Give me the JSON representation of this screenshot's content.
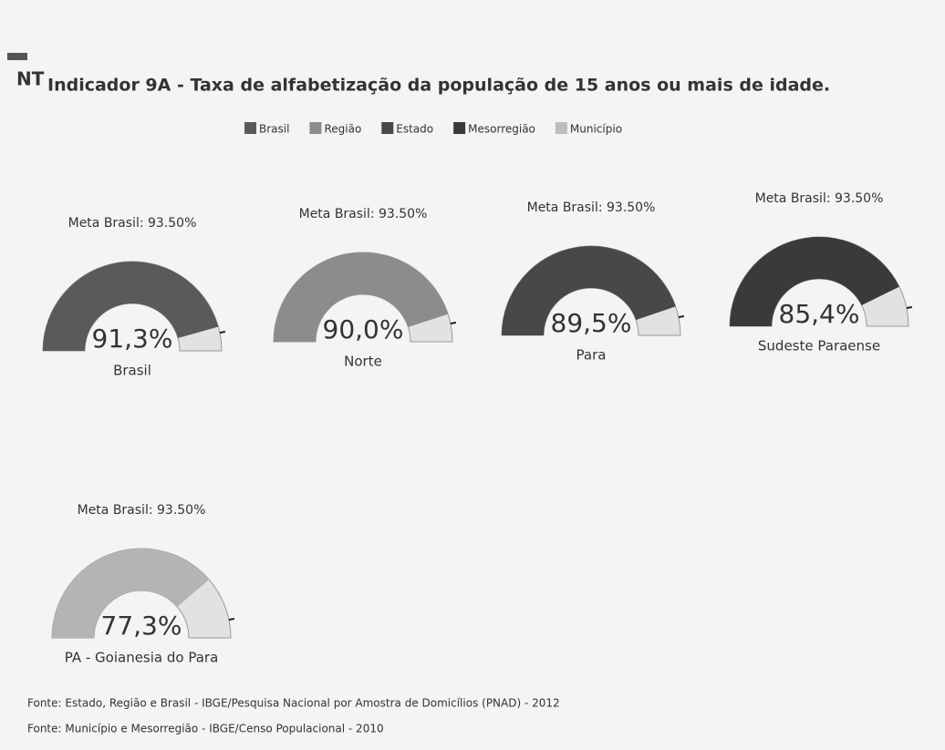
{
  "logo": "NT",
  "chart_data": {
    "type": "gauge",
    "title": "Indicador 9A - Taxa de alfabetização da população de 15 anos ou mais de idade.",
    "legend": [
      {
        "name": "Brasil",
        "color": "#5a5a5a"
      },
      {
        "name": "Região",
        "color": "#8c8c8c"
      },
      {
        "name": "Estado",
        "color": "#484848"
      },
      {
        "name": "Mesorregião",
        "color": "#3a3a3a"
      },
      {
        "name": "Município",
        "color": "#bdbdbd"
      }
    ],
    "ylim": [
      0,
      100
    ],
    "gauges": [
      {
        "label": "Brasil",
        "value": 91.3,
        "value_label": "91,3%",
        "target": 93.5,
        "target_label": "Meta Brasil: 93.50%",
        "color": "#5a5a5a"
      },
      {
        "label": "Norte",
        "value": 90.0,
        "value_label": "90,0%",
        "target": 93.5,
        "target_label": "Meta Brasil: 93.50%",
        "color": "#8c8c8c"
      },
      {
        "label": "Para",
        "value": 89.5,
        "value_label": "89,5%",
        "target": 93.5,
        "target_label": "Meta Brasil: 93.50%",
        "color": "#484848"
      },
      {
        "label": "Sudeste Paraense",
        "value": 85.4,
        "value_label": "85,4%",
        "target": 93.5,
        "target_label": "Meta Brasil: 93.50%",
        "color": "#3a3a3a"
      },
      {
        "label": "PA - Goianesia do Para",
        "value": 77.3,
        "value_label": "77,3%",
        "target": 93.5,
        "target_label": "Meta Brasil: 93.50%",
        "color": "#b4b4b4"
      }
    ]
  },
  "footer": [
    "Fonte: Estado, Região e Brasil - IBGE/Pesquisa Nacional por Amostra de Domicílios (PNAD) - 2012",
    "Fonte: Município e Mesorregião - IBGE/Censo Populacional - 2010"
  ]
}
